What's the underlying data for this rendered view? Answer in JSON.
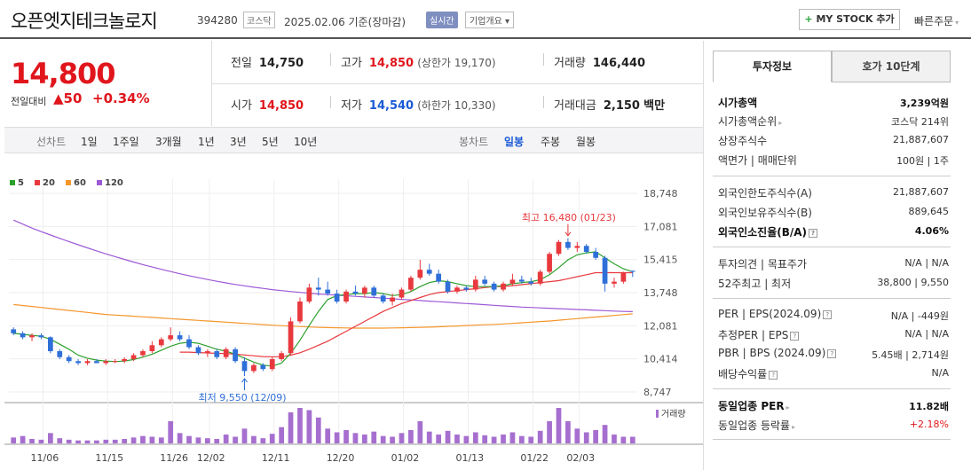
{
  "header": {
    "name": "오픈엣지테크놀로지",
    "code": "394280",
    "market": "코스닥",
    "date": "2025.02.06  기준(장마감)",
    "live_badge": "실시간",
    "corp_btn": "기업개요 ▾",
    "mystock_btn": "MY STOCK 추가",
    "mystock_plus": "+",
    "quick_order": "빠른주문",
    "quick_arrow": "▾"
  },
  "price": {
    "current": "14,800",
    "change_label": "전일대비",
    "change_value": "▲50",
    "change_pct": "+0.34%",
    "prev_label": "전일",
    "prev": "14,750",
    "high_label": "고가",
    "high": "14,850",
    "upper_limit": "(상한가 19,170)",
    "volume_label": "거래량",
    "volume": "146,440",
    "open_label": "시가",
    "open": "14,850",
    "low_label": "저가",
    "low": "14,540",
    "lower_limit": "(하한가 10,330)",
    "amount_label": "거래대금",
    "amount": "2,150",
    "amount_unit": "백만"
  },
  "period_bar": {
    "line_label": "선차트",
    "periods": [
      "1일",
      "1주일",
      "3개월",
      "1년",
      "3년",
      "5년",
      "10년"
    ],
    "candle_label": "봉차트",
    "candle_types": [
      "일봉",
      "주봉",
      "월봉"
    ],
    "active_candle": "일봉"
  },
  "chart_data": {
    "type": "candlestick",
    "legend": [
      "5",
      "20",
      "60",
      "120"
    ],
    "legend_colors": [
      "#2ca02c",
      "#e8393e",
      "#f4962c",
      "#9e59d6"
    ],
    "y_ticks": [
      "18,748",
      "17,081",
      "15,415",
      "13,748",
      "12,081",
      "10,414",
      "8,747"
    ],
    "y_range": [
      8747,
      18748
    ],
    "x_ticks": [
      "11/06",
      "11/15",
      "11/26",
      "12/02",
      "12/11",
      "12/20",
      "01/02",
      "01/13",
      "01/22",
      "02/03"
    ],
    "high_annotation": "최고 16,480 (01/23)",
    "low_annotation": "최저 9,550 (12/09)",
    "volume_label": "거래량",
    "up_color": "#e8393e",
    "down_color": "#2f6fd8",
    "volume_color": "#a66fcf",
    "candles": [
      [
        11900,
        12000,
        11600,
        11700
      ],
      [
        11700,
        11800,
        11400,
        11500
      ],
      [
        11500,
        11700,
        11300,
        11600
      ],
      [
        11600,
        11700,
        11400,
        11500
      ],
      [
        11500,
        11550,
        10700,
        10800
      ],
      [
        10800,
        10900,
        10400,
        10500
      ],
      [
        10500,
        10600,
        10200,
        10300
      ],
      [
        10300,
        10400,
        10100,
        10200
      ],
      [
        10200,
        10400,
        10100,
        10300
      ],
      [
        10300,
        10400,
        10200,
        10200
      ],
      [
        10200,
        10400,
        10100,
        10300
      ],
      [
        10300,
        10400,
        10200,
        10300
      ],
      [
        10300,
        10500,
        10200,
        10400
      ],
      [
        10400,
        10700,
        10300,
        10600
      ],
      [
        10600,
        10900,
        10500,
        10800
      ],
      [
        10800,
        11300,
        10700,
        11100
      ],
      [
        11100,
        11500,
        11000,
        11400
      ],
      [
        11400,
        12000,
        11300,
        11600
      ],
      [
        11600,
        11800,
        11300,
        11400
      ],
      [
        11400,
        11600,
        10900,
        11000
      ],
      [
        11000,
        11100,
        10600,
        10700
      ],
      [
        10700,
        10900,
        10500,
        10800
      ],
      [
        10800,
        10900,
        10400,
        10500
      ],
      [
        10500,
        11000,
        10400,
        10900
      ],
      [
        10900,
        11000,
        10200,
        10300
      ],
      [
        10300,
        10500,
        9550,
        9800
      ],
      [
        9800,
        10200,
        9700,
        10100
      ],
      [
        10100,
        10200,
        9800,
        9900
      ],
      [
        9900,
        10500,
        9800,
        10400
      ],
      [
        10400,
        10800,
        10300,
        10700
      ],
      [
        10700,
        12500,
        10600,
        12300
      ],
      [
        12300,
        13500,
        12200,
        13300
      ],
      [
        13300,
        14200,
        13200,
        14000
      ],
      [
        14000,
        14500,
        13600,
        13900
      ],
      [
        13900,
        14300,
        13600,
        13700
      ],
      [
        13700,
        13900,
        13200,
        13300
      ],
      [
        13300,
        13900,
        13200,
        13800
      ],
      [
        13800,
        14100,
        13600,
        13700
      ],
      [
        13700,
        14100,
        13500,
        14000
      ],
      [
        14000,
        14100,
        13500,
        13600
      ],
      [
        13600,
        13700,
        13200,
        13300
      ],
      [
        13300,
        13700,
        13100,
        13500
      ],
      [
        13500,
        14000,
        13400,
        13900
      ],
      [
        13900,
        14600,
        13800,
        14500
      ],
      [
        14500,
        15400,
        14400,
        14900
      ],
      [
        14900,
        15200,
        14600,
        14700
      ],
      [
        14700,
        14900,
        14200,
        14300
      ],
      [
        14300,
        14400,
        13700,
        13800
      ],
      [
        13800,
        14100,
        13700,
        14000
      ],
      [
        14000,
        14100,
        13800,
        13900
      ],
      [
        13900,
        14600,
        13800,
        14400
      ],
      [
        14400,
        14600,
        14100,
        14200
      ],
      [
        14200,
        14300,
        13800,
        13900
      ],
      [
        13900,
        14300,
        13800,
        14200
      ],
      [
        14200,
        14700,
        14100,
        14400
      ],
      [
        14400,
        14600,
        14200,
        14300
      ],
      [
        14300,
        14500,
        14100,
        14200
      ],
      [
        14200,
        14900,
        14100,
        14800
      ],
      [
        14800,
        15800,
        14700,
        15700
      ],
      [
        15700,
        16400,
        15600,
        16300
      ],
      [
        16300,
        16480,
        15900,
        16000
      ],
      [
        16000,
        16300,
        15800,
        16100
      ],
      [
        16100,
        16200,
        15700,
        15800
      ],
      [
        15800,
        16000,
        15400,
        15500
      ],
      [
        15500,
        15600,
        13800,
        14200
      ],
      [
        14200,
        14500,
        14000,
        14300
      ],
      [
        14300,
        14800,
        14200,
        14750
      ],
      [
        14850,
        14850,
        14540,
        14800
      ]
    ],
    "volumes": [
      8,
      10,
      6,
      5,
      14,
      7,
      5,
      4,
      4,
      4,
      5,
      5,
      6,
      8,
      10,
      9,
      8,
      30,
      14,
      10,
      8,
      7,
      6,
      12,
      9,
      20,
      10,
      7,
      13,
      22,
      42,
      48,
      45,
      35,
      20,
      15,
      18,
      14,
      12,
      16,
      10,
      9,
      14,
      18,
      30,
      16,
      12,
      17,
      12,
      10,
      15,
      11,
      9,
      12,
      15,
      10,
      9,
      17,
      30,
      48,
      30,
      20,
      15,
      18,
      25,
      12,
      9,
      9
    ],
    "ma5": [
      11700,
      11650,
      11600,
      11550,
      11400,
      11150,
      10900,
      10600,
      10450,
      10350,
      10300,
      10280,
      10300,
      10380,
      10500,
      10650,
      10850,
      11050,
      11200,
      11250,
      11200,
      11050,
      10900,
      10800,
      10650,
      10450,
      10250,
      10100,
      10050,
      10200,
      10700,
      11350,
      12100,
      12800,
      13400,
      13600,
      13650,
      13700,
      13700,
      13750,
      13700,
      13600,
      13650,
      13800,
      14050,
      14250,
      14350,
      14300,
      14200,
      14100,
      14050,
      14050,
      14050,
      14100,
      14200,
      14250,
      14300,
      14400,
      14650,
      15000,
      15400,
      15650,
      15750,
      15800,
      15500,
      15200,
      14950,
      14800
    ],
    "ma20": [
      null,
      null,
      null,
      null,
      null,
      null,
      null,
      null,
      null,
      null,
      null,
      null,
      null,
      null,
      null,
      null,
      null,
      null,
      10750,
      10750,
      10730,
      10710,
      10690,
      10680,
      10650,
      10610,
      10570,
      10530,
      10520,
      10520,
      10600,
      10720,
      10900,
      11100,
      11300,
      11550,
      11800,
      12050,
      12300,
      12550,
      12800,
      13000,
      13200,
      13350,
      13500,
      13650,
      13750,
      13800,
      13850,
      13900,
      13950,
      14000,
      14050,
      14050,
      14100,
      14150,
      14200,
      14250,
      14300,
      14350,
      14450,
      14550,
      14650,
      14750,
      14750,
      14750,
      14750,
      14750
    ],
    "ma60": [
      13150,
      13100,
      13050,
      13000,
      12950,
      12900,
      12850,
      12800,
      12750,
      12700,
      12650,
      12620,
      12590,
      12560,
      12530,
      12500,
      12470,
      12440,
      12410,
      12380,
      12350,
      12320,
      12290,
      12260,
      12230,
      12200,
      12170,
      12140,
      12110,
      12080,
      12060,
      12040,
      12020,
      12000,
      11990,
      11980,
      11970,
      11960,
      11960,
      11960,
      11960,
      11970,
      11980,
      11990,
      12000,
      12010,
      12030,
      12050,
      12070,
      12090,
      12110,
      12130,
      12150,
      12170,
      12200,
      12230,
      12260,
      12290,
      12320,
      12360,
      12400,
      12440,
      12480,
      12520,
      12560,
      12600,
      12640,
      12680
    ],
    "ma120": [
      17400,
      17200,
      17000,
      16820,
      16650,
      16480,
      16320,
      16160,
      16000,
      15850,
      15700,
      15560,
      15420,
      15290,
      15160,
      15040,
      14920,
      14810,
      14700,
      14600,
      14500,
      14410,
      14320,
      14240,
      14160,
      14090,
      14020,
      13960,
      13900,
      13850,
      13800,
      13760,
      13720,
      13680,
      13650,
      13620,
      13590,
      13560,
      13530,
      13500,
      13470,
      13440,
      13410,
      13380,
      13350,
      13320,
      13290,
      13260,
      13230,
      13200,
      13170,
      13140,
      13110,
      13080,
      13050,
      13020,
      13000,
      12980,
      12960,
      12940,
      12920,
      12900,
      12880,
      12860,
      12840,
      12820,
      12800,
      12790
    ]
  },
  "tabs": [
    "투자정보",
    "호가 10단계"
  ],
  "info": {
    "market_cap_label": "시가총액",
    "market_cap": "3,239억원",
    "market_cap_rank_label": "시가총액순위",
    "market_cap_rank": "코스닥 214위",
    "listed_shares_label": "상장주식수",
    "listed_shares": "21,887,607",
    "par_label": "액면가 | 매매단위",
    "par": "100원 | 1주",
    "foreign_limit_label": "외국인한도주식수(A)",
    "foreign_limit": "21,887,607",
    "foreign_hold_label": "외국인보유주식수(B)",
    "foreign_hold": "889,645",
    "foreign_ratio_label": "외국인소진율(B/A)",
    "foreign_ratio": "4.06%",
    "opinion_label": "투자의견 | 목표주가",
    "opinion": "N/A | N/A",
    "w52_label": "52주최고 | 최저",
    "w52": "38,800 | 9,550",
    "per_label": "PER | EPS(2024.09)",
    "per": "N/A | -449원",
    "est_per_label": "추정PER | EPS",
    "est_per": "N/A | N/A",
    "pbr_label": "PBR | BPS (2024.09)",
    "pbr": "5.45배 | 2,714원",
    "dividend_label": "배당수익률",
    "dividend": "N/A",
    "sector_per_label": "동일업종 PER",
    "sector_per": "11.82배",
    "sector_chg_label": "동일업종 등락률",
    "sector_chg": "+2.18%"
  }
}
